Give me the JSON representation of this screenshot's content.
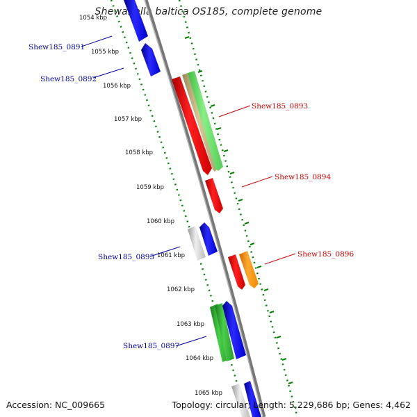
{
  "title": "Shewanella baltica OS185, complete genome",
  "footer": {
    "accession": "Accession: NC_009665",
    "summary": "Topology: circular; Length: 5,229,686 bp; Genes: 4,462"
  },
  "ticks": [
    "1054 kbp",
    "1055 kbp",
    "1056 kbp",
    "1057 kbp",
    "1058 kbp",
    "1059 kbp",
    "1060 kbp",
    "1061 kbp",
    "1062 kbp",
    "1063 kbp",
    "1064 kbp",
    "1065 kbp"
  ],
  "gene_labels": {
    "g0891": "Shew185_0891",
    "g0892": "Shew185_0892",
    "g0893": "Shew185_0893",
    "g0894": "Shew185_0894",
    "g0895": "Shew185_0895",
    "g0896": "Shew185_0896",
    "g0897": "Shew185_0897"
  },
  "colors": {
    "forward_strand": "#ff0000",
    "reverse_strand": "#0000ff",
    "label_forward": "#cc0000",
    "label_reverse": "#0000aa",
    "backbone": "#888888",
    "dots": "#008000"
  }
}
